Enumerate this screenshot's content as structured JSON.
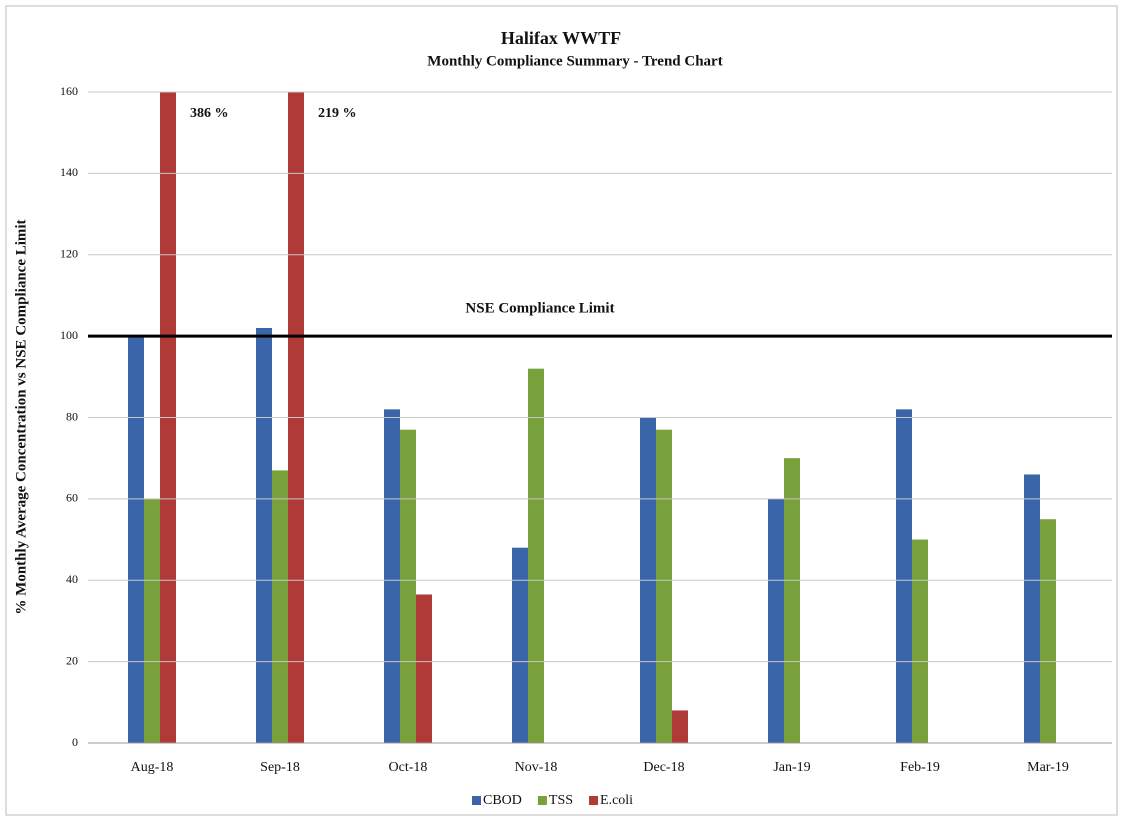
{
  "chart_data": {
    "type": "bar",
    "title": "Halifax WWTF",
    "subtitle": "Monthly Compliance Summary  - Trend Chart",
    "y_label": "% Monthly Average Concentration  vs NSE Compliance  Limit",
    "categories": [
      "Aug-18",
      "Sep-18",
      "Oct-18",
      "Nov-18",
      "Dec-18",
      "Jan-19",
      "Feb-19",
      "Mar-19"
    ],
    "series": [
      {
        "name": "CBOD",
        "color": "#3b65a9",
        "values": [
          100,
          102,
          82,
          48,
          80,
          60,
          82,
          66
        ]
      },
      {
        "name": "TSS",
        "color": "#78a03b",
        "values": [
          60,
          67,
          77,
          92,
          77,
          70,
          50,
          55
        ]
      },
      {
        "name": "E.coli",
        "color": "#b03a37",
        "values": [
          386,
          219,
          36.5,
          null,
          8,
          null,
          null,
          null
        ],
        "value_labels": [
          "386 %",
          "219 %",
          null,
          null,
          null,
          null,
          null,
          null
        ]
      }
    ],
    "reference_line": {
      "value": 100,
      "label": "NSE Compliance  Limit"
    },
    "ylim": [
      0,
      160
    ],
    "yticks": [
      0,
      20,
      40,
      60,
      80,
      100,
      120,
      140,
      160
    ],
    "grid": true,
    "legend": "bottom"
  }
}
